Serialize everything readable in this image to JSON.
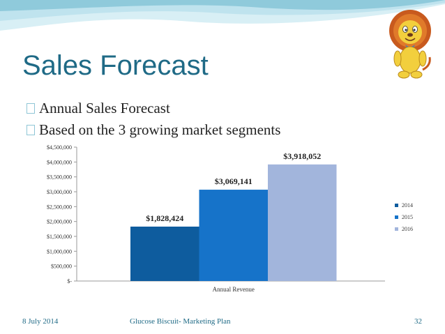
{
  "slide": {
    "title": "Sales Forecast",
    "bullets": [
      "Annual Sales Forecast",
      "Based on the 3 growing market segments"
    ],
    "footer": {
      "date": "8 July 2014",
      "center": "Glucose Biscuit- Marketing Plan",
      "page": "32"
    },
    "colors": {
      "title": "#1f6a86",
      "wave_light": "#bfe3ee",
      "wave_dark": "#8fcadb"
    }
  },
  "chart_data": {
    "type": "bar",
    "categories": [
      "Annual Revenue"
    ],
    "series": [
      {
        "name": "2014",
        "values": [
          1828424
        ],
        "label": "$1,828,424",
        "color": "#0e5c9e"
      },
      {
        "name": "2015",
        "values": [
          3069141
        ],
        "label": "$3,069,141",
        "color": "#1673c9"
      },
      {
        "name": "2016",
        "values": [
          3918052
        ],
        "label": "$3,918,052",
        "color": "#a2b5dc"
      }
    ],
    "ylim": [
      0,
      4500000
    ],
    "yticks": [
      0,
      500000,
      1000000,
      1500000,
      2000000,
      2500000,
      3000000,
      3500000,
      4000000,
      4500000
    ],
    "ytick_labels": [
      "$-",
      "$500,000",
      "$1,000,000",
      "$1,500,000",
      "$2,000,000",
      "$2,500,000",
      "$3,000,000",
      "$3,500,000",
      "$4,000,000",
      "$4,500,000"
    ],
    "xlabel": "",
    "ylabel": "",
    "grid": false,
    "legend": "right"
  }
}
